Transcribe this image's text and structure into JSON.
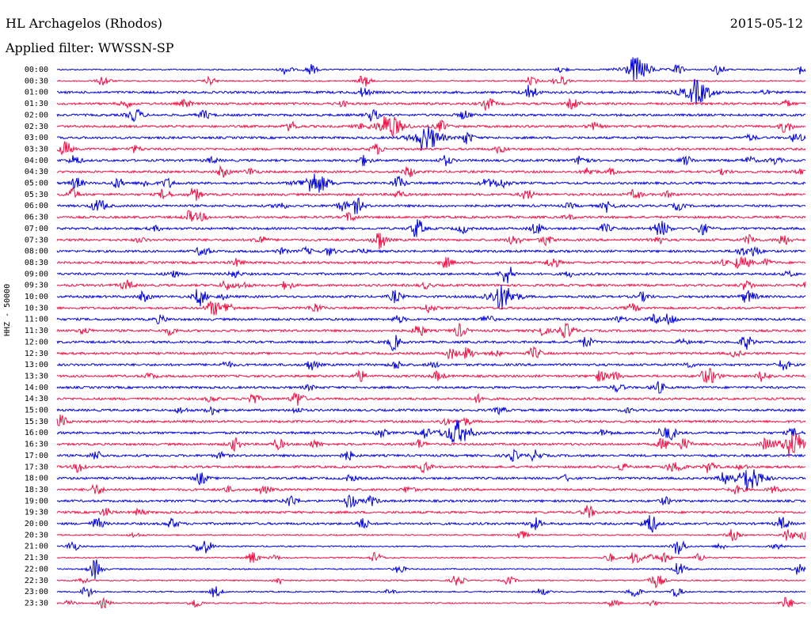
{
  "header": {
    "station": "HL Archagelos (Rhodos)",
    "date": "2015-05-12",
    "filter": "Applied filter: WWSSN-SP"
  },
  "chart_data": {
    "type": "line",
    "title": "HL Archagelos (Rhodos)",
    "subtitle": "Applied filter: WWSSN-SP",
    "date": "2015-05-12",
    "ylabel": "HHZ - 50000",
    "xlabel": "",
    "grid": false,
    "colors": [
      "#0000dd",
      "#ee1144"
    ],
    "rows": [
      "00:00",
      "00:30",
      "01:00",
      "01:30",
      "02:00",
      "02:30",
      "03:00",
      "03:30",
      "04:00",
      "04:30",
      "05:00",
      "05:30",
      "06:00",
      "06:30",
      "07:00",
      "07:30",
      "08:00",
      "08:30",
      "09:00",
      "09:30",
      "10:00",
      "10:30",
      "11:00",
      "11:30",
      "12:00",
      "12:30",
      "13:00",
      "13:30",
      "14:00",
      "14:30",
      "15:00",
      "15:30",
      "16:00",
      "16:30",
      "17:00",
      "17:30",
      "18:00",
      "18:30",
      "19:00",
      "19:30",
      "20:00",
      "20:30",
      "21:00",
      "21:30",
      "22:00",
      "22:30",
      "23:00",
      "23:30"
    ],
    "events": [
      {
        "row": 0,
        "t": 0.77,
        "amp": 1.0
      },
      {
        "row": 2,
        "t": 0.85,
        "amp": 1.0
      },
      {
        "row": 5,
        "t": 0.44,
        "amp": 0.9
      },
      {
        "row": 6,
        "t": 0.49,
        "amp": 1.0
      },
      {
        "row": 7,
        "t": 0.01,
        "amp": 0.6
      },
      {
        "row": 10,
        "t": 0.34,
        "amp": 0.9
      },
      {
        "row": 12,
        "t": 0.4,
        "amp": 0.6
      },
      {
        "row": 14,
        "t": 0.48,
        "amp": 0.8
      },
      {
        "row": 15,
        "t": 0.43,
        "amp": 0.8
      },
      {
        "row": 18,
        "t": 0.6,
        "amp": 0.8
      },
      {
        "row": 20,
        "t": 0.59,
        "amp": 1.0
      },
      {
        "row": 20,
        "t": 0.19,
        "amp": 0.7
      },
      {
        "row": 29,
        "t": 0.32,
        "amp": 0.6
      },
      {
        "row": 32,
        "t": 0.53,
        "amp": 1.0
      },
      {
        "row": 33,
        "t": 0.98,
        "amp": 1.0
      },
      {
        "row": 36,
        "t": 0.92,
        "amp": 1.0
      },
      {
        "row": 38,
        "t": 0.39,
        "amp": 0.6
      },
      {
        "row": 40,
        "t": 0.79,
        "amp": 0.6
      },
      {
        "row": 42,
        "t": 0.83,
        "amp": 0.7
      },
      {
        "row": 44,
        "t": 0.05,
        "amp": 0.8
      },
      {
        "row": 46,
        "t": 0.77,
        "amp": 0.5
      }
    ]
  }
}
